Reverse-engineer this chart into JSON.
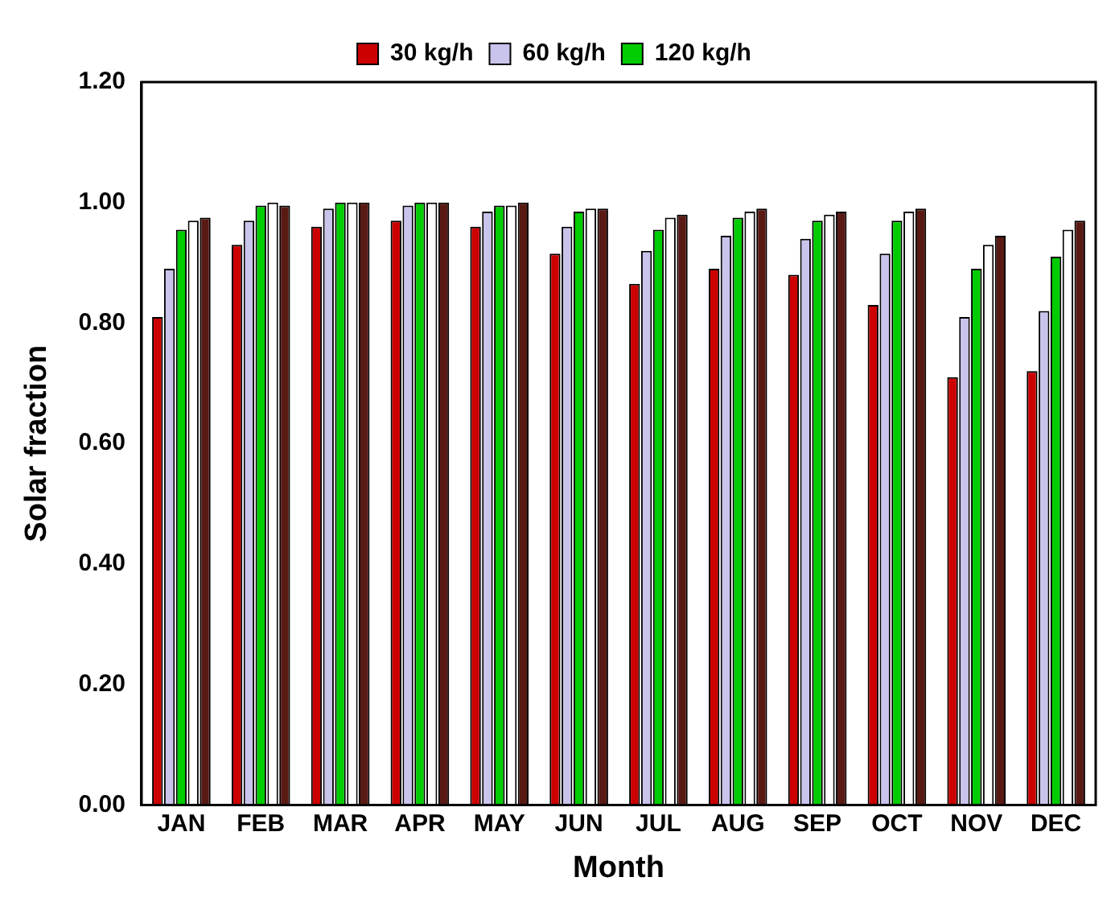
{
  "chart_data": {
    "type": "bar",
    "xlabel": "Month",
    "ylabel": "Solar fraction",
    "categories": [
      "JAN",
      "FEB",
      "MAR",
      "APR",
      "MAY",
      "JUN",
      "JUL",
      "AUG",
      "SEP",
      "OCT",
      "NOV",
      "DEC"
    ],
    "series": [
      {
        "name": "30 kg/h",
        "color": "#cc0000",
        "values": [
          0.81,
          0.93,
          0.96,
          0.97,
          0.96,
          0.915,
          0.865,
          0.89,
          0.88,
          0.83,
          0.71,
          0.72
        ]
      },
      {
        "name": "60 kg/h",
        "color": "#c8c4ec",
        "values": [
          0.89,
          0.97,
          0.99,
          0.995,
          0.985,
          0.96,
          0.92,
          0.945,
          0.94,
          0.915,
          0.81,
          0.82
        ]
      },
      {
        "name": "120 kg/h",
        "color": "#00cc00",
        "values": [
          0.955,
          0.995,
          1.0,
          1.0,
          0.995,
          0.985,
          0.955,
          0.975,
          0.97,
          0.97,
          0.89,
          0.91
        ]
      },
      {
        "color": "#ffffff",
        "values": [
          0.97,
          1.0,
          1.0,
          1.0,
          0.995,
          0.99,
          0.975,
          0.985,
          0.98,
          0.985,
          0.93,
          0.955
        ]
      },
      {
        "color": "#5a1a14",
        "values": [
          0.975,
          0.995,
          1.0,
          1.0,
          1.0,
          0.99,
          0.98,
          0.99,
          0.985,
          0.99,
          0.945,
          0.97
        ]
      }
    ],
    "ylim": [
      0,
      1.2
    ],
    "yticks": [
      {
        "value": 0,
        "label": "0.00"
      },
      {
        "value": 0.2,
        "label": "0.20"
      },
      {
        "value": 0.4,
        "label": "0.40"
      },
      {
        "value": 0.6,
        "label": "0.60"
      },
      {
        "value": 0.8,
        "label": "0.80"
      },
      {
        "value": 1.0,
        "label": "1.00"
      },
      {
        "value": 1.2,
        "label": "1.20"
      }
    ],
    "grid": false,
    "legend": "top"
  }
}
